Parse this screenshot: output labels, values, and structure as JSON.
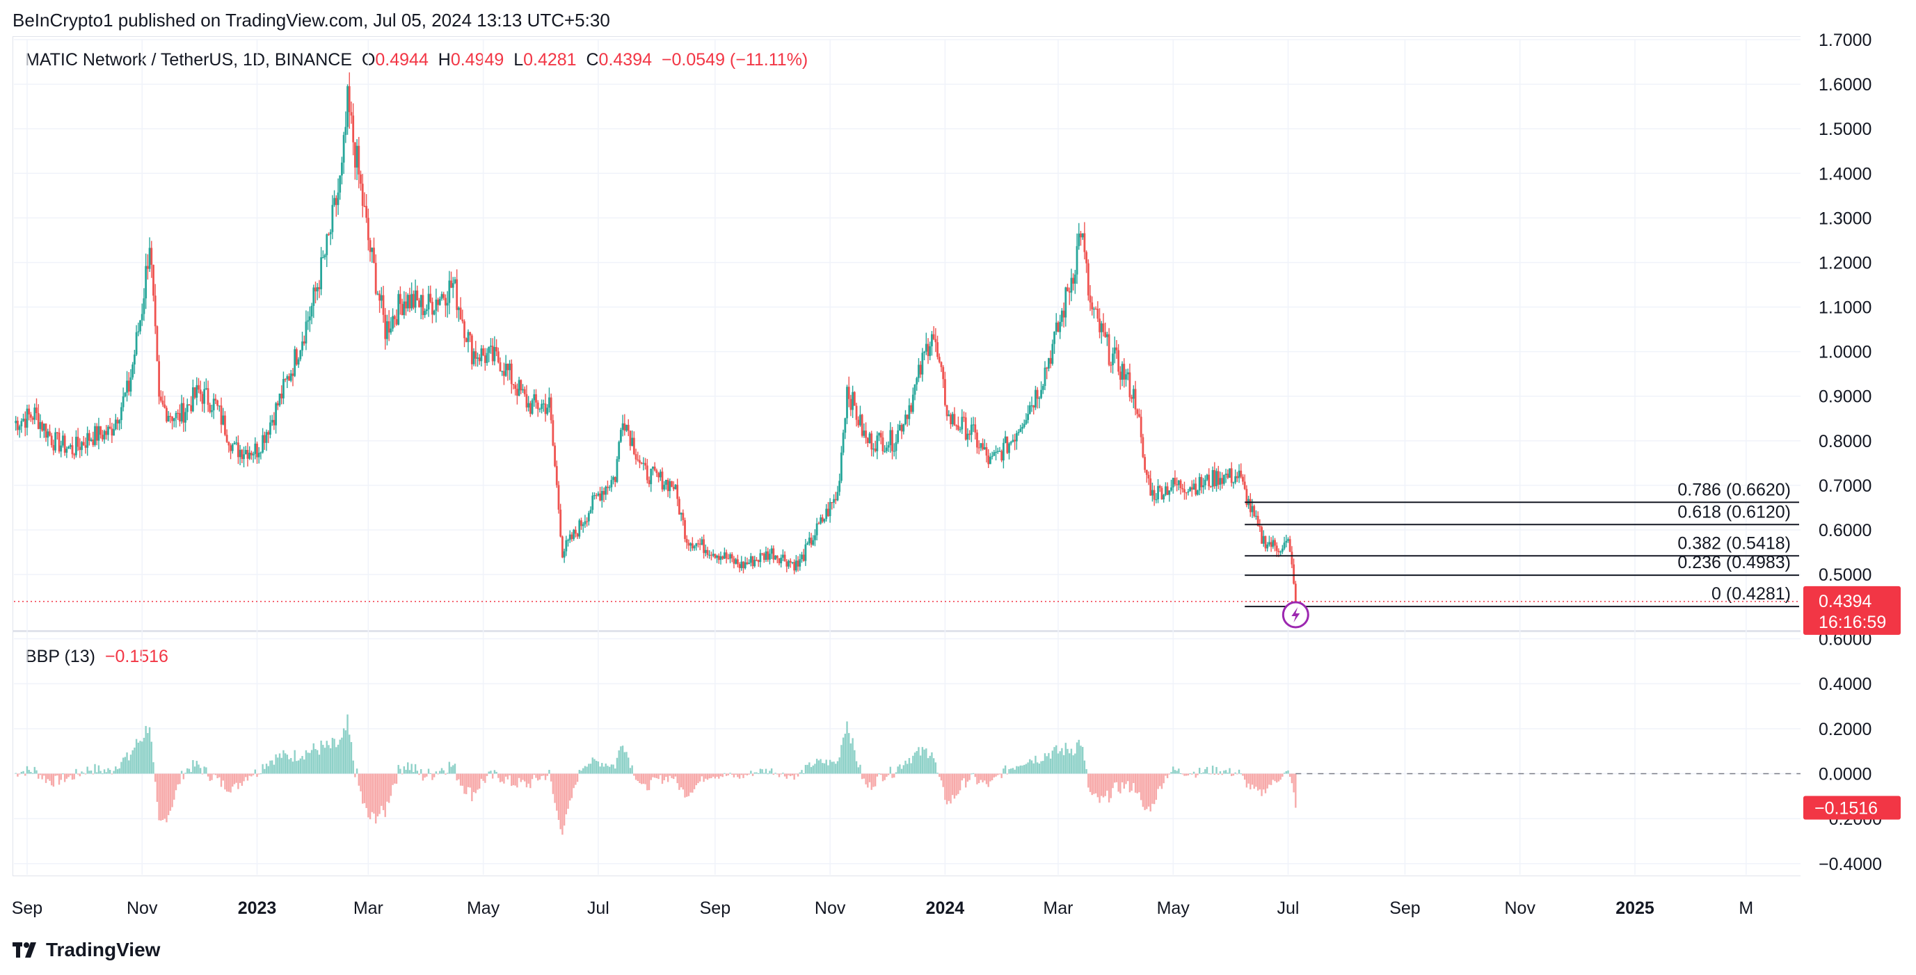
{
  "publish_line": "BeInCrypto1 published on TradingView.com, Jul 05, 2024 13:13 UTC+5:30",
  "legend": {
    "symbol": "MATIC Network / TetherUS, 1D, BINANCE",
    "o_label": "O",
    "o_value": "0.4944",
    "h_label": "H",
    "h_value": "0.4949",
    "l_label": "L",
    "l_value": "0.4281",
    "c_label": "C",
    "c_value": "0.4394",
    "change": "−0.0549 (−11.11%)"
  },
  "indicator_legend": {
    "name": "BBP (13)",
    "value": "−0.1516"
  },
  "price_badge": {
    "price": "0.4394",
    "countdown": "16:16:59"
  },
  "bbp_badge": {
    "value": "−0.1516"
  },
  "footer": {
    "brand": "TradingView"
  },
  "colors": {
    "up": "#26a69a",
    "down": "#ef5350",
    "up_hist": "#8ed1c8",
    "down_hist": "#f7a9a9",
    "accent": "#f23645",
    "fib_line": "#131722",
    "event_icon": "#9c27b0"
  },
  "chart_data": [
    {
      "type": "candlestick",
      "title": "MATIC Network / TetherUS, 1D, BINANCE",
      "y_axis": {
        "ticks": [
          "1.7000",
          "1.6000",
          "1.5000",
          "1.4000",
          "1.3000",
          "1.2000",
          "1.1000",
          "1.0000",
          "0.9000",
          "0.8000",
          "0.7000",
          "0.6000",
          "0.5000"
        ],
        "range": [
          0.38,
          1.7
        ]
      },
      "x_axis": {
        "labels": [
          "Sep",
          "Nov",
          "2023",
          "Mar",
          "May",
          "Jul",
          "Sep",
          "Nov",
          "2024",
          "Mar",
          "May",
          "Jul",
          "Sep",
          "Nov",
          "2025",
          "M"
        ],
        "bold_labels": [
          "2023",
          "2024",
          "2025"
        ]
      },
      "series_points": [
        [
          "2022-08-25",
          0.84
        ],
        [
          "2022-09-05",
          0.86
        ],
        [
          "2022-09-15",
          0.8
        ],
        [
          "2022-09-25",
          0.78
        ],
        [
          "2022-10-05",
          0.81
        ],
        [
          "2022-10-15",
          0.82
        ],
        [
          "2022-10-25",
          0.92
        ],
        [
          "2022-11-01",
          1.1
        ],
        [
          "2022-11-05",
          1.25
        ],
        [
          "2022-11-10",
          0.88
        ],
        [
          "2022-11-20",
          0.85
        ],
        [
          "2022-12-01",
          0.91
        ],
        [
          "2022-12-10",
          0.88
        ],
        [
          "2022-12-20",
          0.78
        ],
        [
          "2023-01-01",
          0.78
        ],
        [
          "2023-01-10",
          0.86
        ],
        [
          "2023-01-20",
          0.97
        ],
        [
          "2023-01-30",
          1.1
        ],
        [
          "2023-02-08",
          1.25
        ],
        [
          "2023-02-15",
          1.4
        ],
        [
          "2023-02-18",
          1.55
        ],
        [
          "2023-02-22",
          1.45
        ],
        [
          "2023-03-01",
          1.25
        ],
        [
          "2023-03-10",
          1.05
        ],
        [
          "2023-03-20",
          1.12
        ],
        [
          "2023-04-01",
          1.1
        ],
        [
          "2023-04-15",
          1.15
        ],
        [
          "2023-04-25",
          1.0
        ],
        [
          "2023-05-10",
          0.98
        ],
        [
          "2023-05-25",
          0.88
        ],
        [
          "2023-06-05",
          0.88
        ],
        [
          "2023-06-10",
          0.65
        ],
        [
          "2023-06-12",
          0.55
        ],
        [
          "2023-06-20",
          0.6
        ],
        [
          "2023-07-01",
          0.68
        ],
        [
          "2023-07-10",
          0.72
        ],
        [
          "2023-07-14",
          0.86
        ],
        [
          "2023-07-25",
          0.73
        ],
        [
          "2023-08-10",
          0.7
        ],
        [
          "2023-08-17",
          0.58
        ],
        [
          "2023-09-01",
          0.55
        ],
        [
          "2023-09-15",
          0.52
        ],
        [
          "2023-10-01",
          0.55
        ],
        [
          "2023-10-15",
          0.52
        ],
        [
          "2023-10-25",
          0.6
        ],
        [
          "2023-11-05",
          0.68
        ],
        [
          "2023-11-10",
          0.92
        ],
        [
          "2023-11-20",
          0.8
        ],
        [
          "2023-12-05",
          0.8
        ],
        [
          "2023-12-15",
          0.9
        ],
        [
          "2023-12-25",
          1.05
        ],
        [
          "2024-01-03",
          0.85
        ],
        [
          "2024-01-15",
          0.82
        ],
        [
          "2024-01-25",
          0.75
        ],
        [
          "2024-02-05",
          0.8
        ],
        [
          "2024-02-20",
          0.92
        ],
        [
          "2024-03-01",
          1.05
        ],
        [
          "2024-03-10",
          1.2
        ],
        [
          "2024-03-13",
          1.28
        ],
        [
          "2024-03-18",
          1.1
        ],
        [
          "2024-03-28",
          1.0
        ],
        [
          "2024-04-05",
          0.95
        ],
        [
          "2024-04-12",
          0.88
        ],
        [
          "2024-04-15",
          0.75
        ],
        [
          "2024-04-20",
          0.68
        ],
        [
          "2024-05-01",
          0.7
        ],
        [
          "2024-05-15",
          0.7
        ],
        [
          "2024-05-25",
          0.72
        ],
        [
          "2024-06-05",
          0.72
        ],
        [
          "2024-06-10",
          0.66
        ],
        [
          "2024-06-17",
          0.58
        ],
        [
          "2024-06-25",
          0.56
        ],
        [
          "2024-07-01",
          0.57
        ],
        [
          "2024-07-04",
          0.49
        ],
        [
          "2024-07-05",
          0.4394
        ]
      ],
      "last_price": 0.4394,
      "fibonacci": [
        {
          "label": "0.786 (0.6620)",
          "price": 0.662
        },
        {
          "label": "0.618 (0.6120)",
          "price": 0.612
        },
        {
          "label": "0.382 (0.5418)",
          "price": 0.5418
        },
        {
          "label": "0.236 (0.4983)",
          "price": 0.4983
        },
        {
          "label": "0 (0.4281)",
          "price": 0.4281
        }
      ]
    },
    {
      "type": "histogram",
      "title": "BBP (13)",
      "y_axis": {
        "ticks": [
          "0.6000",
          "0.4000",
          "0.2000",
          "0.0000",
          "−0.2000",
          "−0.4000"
        ],
        "range": [
          -0.45,
          0.62
        ]
      },
      "last_value": -0.1516
    }
  ]
}
